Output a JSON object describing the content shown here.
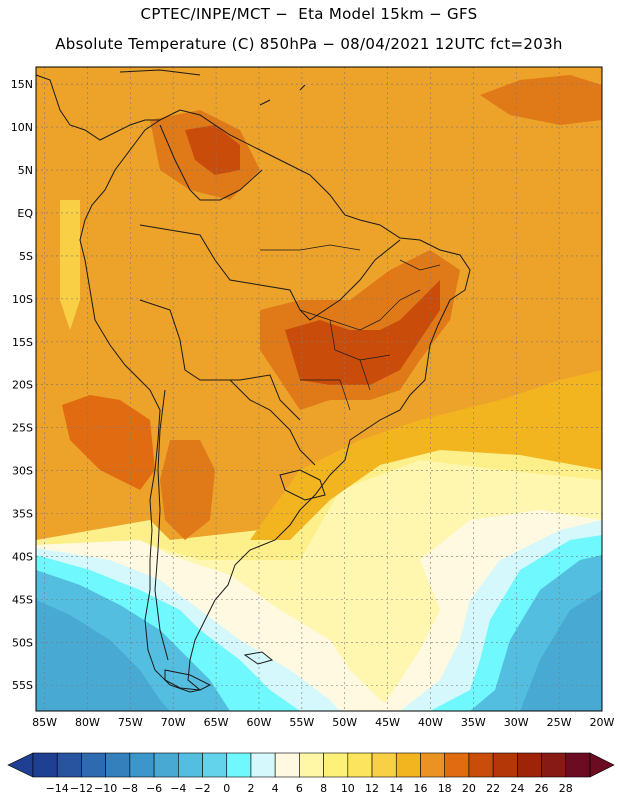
{
  "header": {
    "line1": "CPTEC/INPE/MCT −  Eta Model 15km − GFS",
    "line2": "Absolute Temperature (C) 850hPa − 08/04/2021 12UTC fct=203h"
  },
  "map": {
    "lat_labels": [
      "15N",
      "10N",
      "5N",
      "EQ",
      "5S",
      "10S",
      "15S",
      "20S",
      "25S",
      "30S",
      "35S",
      "40S",
      "45S",
      "50S",
      "55S"
    ],
    "lon_labels": [
      "85W",
      "80W",
      "75W",
      "70W",
      "65W",
      "60W",
      "55W",
      "50W",
      "45W",
      "40W",
      "35W",
      "30W",
      "25W",
      "20W"
    ],
    "lat_values": [
      15,
      10,
      5,
      0,
      -5,
      -10,
      -15,
      -20,
      -25,
      -30,
      -35,
      -40,
      -45,
      -50,
      -55
    ],
    "lon_values": [
      -85,
      -80,
      -75,
      -70,
      -65,
      -60,
      -55,
      -50,
      -45,
      -40,
      -35,
      -30,
      -25,
      -20
    ],
    "lon_range": [
      -86,
      -20
    ],
    "lat_range": [
      -58,
      17
    ],
    "grid": true,
    "background_color": "#eda22a"
  },
  "colorbar": {
    "labels": [
      "−14",
      "−12",
      "−10",
      "−8",
      "−6",
      "−4",
      "−2",
      "0",
      "2",
      "4",
      "6",
      "8",
      "10",
      "12",
      "14",
      "16",
      "18",
      "20",
      "22",
      "24",
      "26",
      "28"
    ],
    "colors": [
      "#1f3f93",
      "#27539f",
      "#2e6aaf",
      "#3480bd",
      "#3d96c9",
      "#48aad3",
      "#53bedf",
      "#62d3ea",
      "#6ff8fd",
      "#d4f8fb",
      "#fff9e2",
      "#fff7a5",
      "#fdf17a",
      "#fde45f",
      "#f9cf45",
      "#f3b51f",
      "#ea9322",
      "#e06b10",
      "#ca4c0b",
      "#b43708",
      "#9e2308",
      "#871a14",
      "#6c0c22"
    ]
  }
}
